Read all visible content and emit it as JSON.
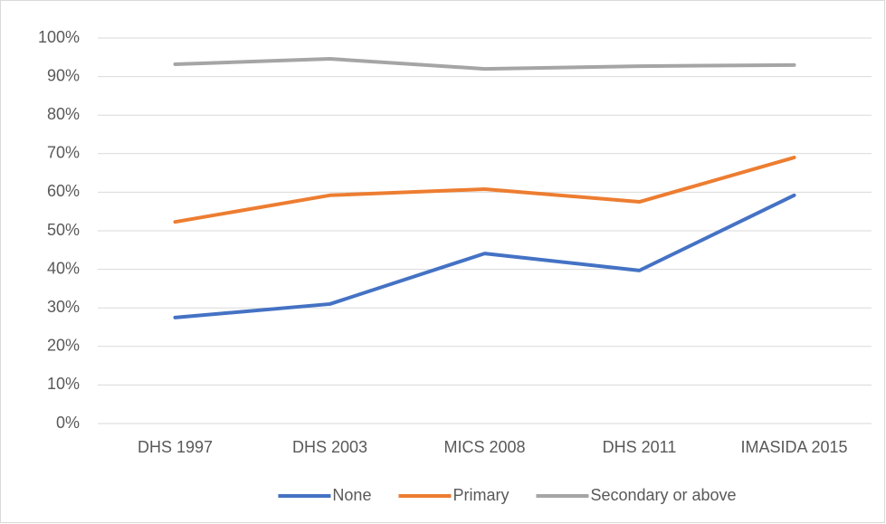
{
  "chart_data": {
    "type": "line",
    "categories": [
      "DHS 1997",
      "DHS 2003",
      "MICS 2008",
      "DHS 2011",
      "IMASIDA 2015"
    ],
    "series": [
      {
        "name": "None",
        "color": "#4472c4",
        "values": [
          27.5,
          31.0,
          44.1,
          39.7,
          59.2
        ]
      },
      {
        "name": "Primary",
        "color": "#ed7d31",
        "values": [
          52.3,
          59.2,
          60.8,
          57.5,
          69.0
        ]
      },
      {
        "name": "Secondary or above",
        "color": "#a5a5a5",
        "values": [
          93.2,
          94.6,
          92.0,
          92.7,
          93.0
        ]
      }
    ],
    "ylim": [
      0,
      100
    ],
    "yticks": [
      {
        "value": 0,
        "label": "0%"
      },
      {
        "value": 10,
        "label": "10%"
      },
      {
        "value": 20,
        "label": "20%"
      },
      {
        "value": 30,
        "label": "30%"
      },
      {
        "value": 40,
        "label": "40%"
      },
      {
        "value": 50,
        "label": "50%"
      },
      {
        "value": 60,
        "label": "60%"
      },
      {
        "value": 70,
        "label": "70%"
      },
      {
        "value": 80,
        "label": "80%"
      },
      {
        "value": 90,
        "label": "90%"
      },
      {
        "value": 100,
        "label": "100%"
      }
    ],
    "grid": true,
    "legend": "bottom"
  }
}
